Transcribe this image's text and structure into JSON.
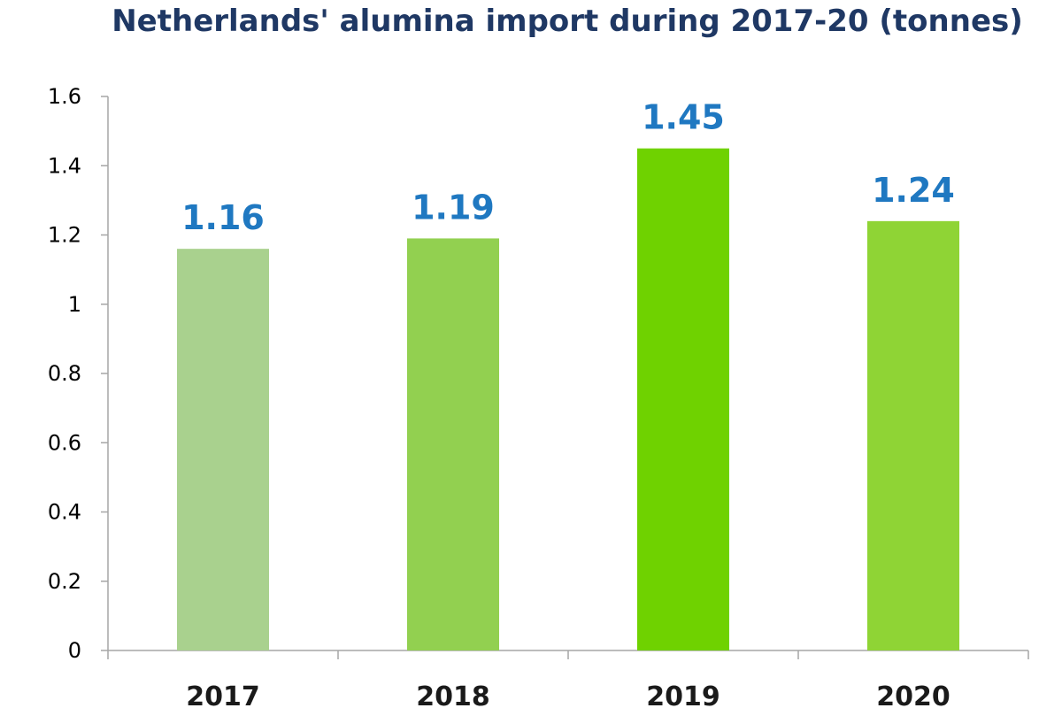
{
  "chart_data": {
    "type": "bar",
    "title": "Netherlands' alumina import during 2017-20 (tonnes)",
    "xlabel": "",
    "ylabel": "",
    "categories": [
      "2017",
      "2018",
      "2019",
      "2020"
    ],
    "values": [
      1.16,
      1.19,
      1.45,
      1.24
    ],
    "data_labels": [
      "1.16",
      "1.19",
      "1.45",
      "1.24"
    ],
    "ylim": [
      0,
      1.6
    ],
    "y_ticks": [
      "0",
      "0.2",
      "0.4",
      "0.6",
      "0.8",
      "1",
      "1.2",
      "1.4",
      "1.6"
    ],
    "grid": false,
    "legend": "none",
    "bar_colors": [
      "#a9d18e",
      "#92d050",
      "#6fd200",
      "#8fd435"
    ],
    "label_color": "#1f78c1",
    "title_color": "#1f3864"
  }
}
